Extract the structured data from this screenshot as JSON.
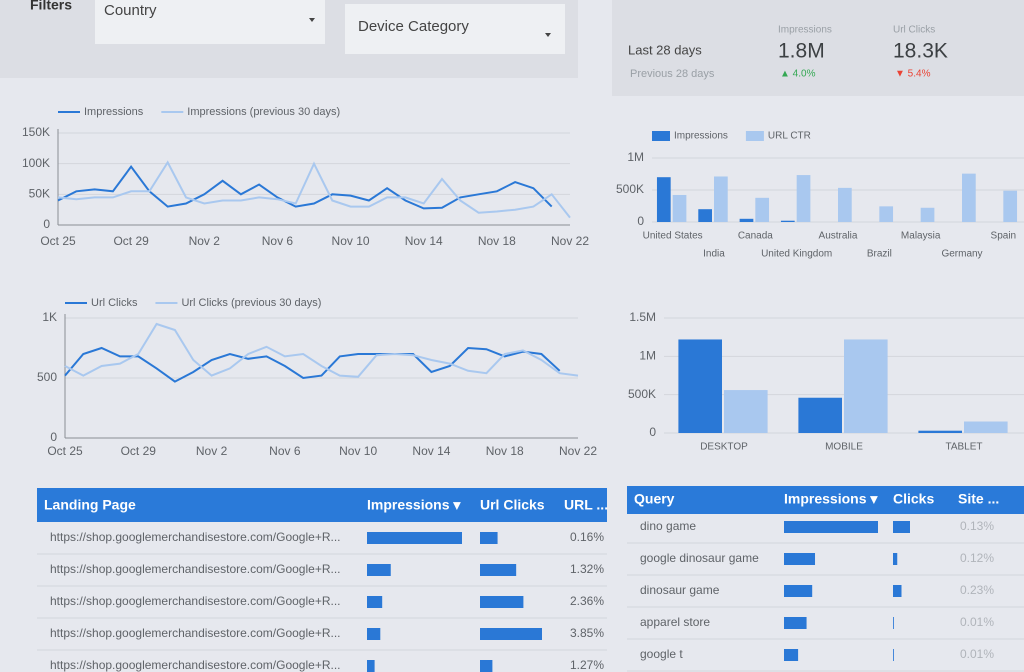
{
  "filters": {
    "label": "Filters",
    "dropdowns": [
      "Country",
      "Device Category"
    ]
  },
  "scorecard": {
    "period": "Last 28 days",
    "previous": "Previous 28 days",
    "metrics": [
      {
        "name": "Impressions",
        "value": "1.8M",
        "delta": "▲ 4.0%"
      },
      {
        "name": "Url Clicks",
        "value": "18.3K",
        "delta": "▼ 5.4%"
      }
    ]
  },
  "impressions_chart": {
    "type": "line",
    "categories": [
      "Oct 25",
      null,
      null,
      null,
      "Oct 29",
      null,
      null,
      null,
      "Nov 2",
      null,
      null,
      null,
      "Nov 6",
      null,
      null,
      null,
      "Nov 10",
      null,
      null,
      null,
      "Nov 14",
      null,
      null,
      null,
      "Nov 18",
      null,
      null,
      null,
      "Nov 22"
    ],
    "series": [
      {
        "name": "Impressions",
        "color": "#2a78d6",
        "values": [
          40000,
          55000,
          58000,
          55000,
          95000,
          55000,
          30000,
          35000,
          50000,
          72000,
          50000,
          66000,
          45000,
          30000,
          35000,
          50000,
          48000,
          40000,
          60000,
          40000,
          27000,
          28000,
          45000,
          50000,
          55000,
          70000,
          60000,
          30000,
          null
        ]
      },
      {
        "name": "Impressions (previous 30 days)",
        "color": "#a9c8ef",
        "values": [
          45000,
          42000,
          45000,
          45000,
          55000,
          55000,
          102000,
          45000,
          35000,
          40000,
          40000,
          45000,
          42000,
          35000,
          100000,
          40000,
          30000,
          30000,
          45000,
          45000,
          35000,
          75000,
          40000,
          20000,
          22000,
          25000,
          30000,
          50000,
          12000
        ]
      }
    ],
    "ylim": [
      0,
      150000
    ],
    "yticks": [
      0,
      {
        "value": 50000,
        "label": "50K"
      },
      {
        "value": 100000,
        "label": "100K"
      },
      {
        "value": 150000,
        "label": "150K"
      }
    ],
    "grid": true
  },
  "clicks_chart": {
    "type": "line",
    "categories": [
      "Oct 25",
      null,
      null,
      null,
      "Oct 29",
      null,
      null,
      null,
      "Nov 2",
      null,
      null,
      null,
      "Nov 6",
      null,
      null,
      null,
      "Nov 10",
      null,
      null,
      null,
      "Nov 14",
      null,
      null,
      null,
      "Nov 18",
      null,
      null,
      null,
      "Nov 22"
    ],
    "series": [
      {
        "name": "Url Clicks",
        "color": "#2a78d6",
        "values": [
          520,
          700,
          750,
          680,
          680,
          580,
          470,
          550,
          650,
          700,
          660,
          680,
          600,
          500,
          520,
          680,
          700,
          700,
          700,
          700,
          550,
          600,
          750,
          740,
          680,
          720,
          700,
          560,
          null
        ]
      },
      {
        "name": "Url Clicks (previous 30 days)",
        "color": "#a9c8ef",
        "values": [
          600,
          520,
          600,
          620,
          700,
          950,
          900,
          650,
          520,
          580,
          700,
          760,
          680,
          700,
          600,
          520,
          510,
          690,
          700,
          690,
          650,
          620,
          560,
          540,
          700,
          730,
          650,
          540,
          520
        ]
      }
    ],
    "ylim": [
      0,
      1000
    ],
    "yticks": [
      0,
      500,
      {
        "value": 1000,
        "label": "1K"
      }
    ],
    "grid": true
  },
  "country_chart": {
    "type": "bar",
    "categories": [
      "United States",
      "India",
      "Canada",
      "United Kingdom",
      "Australia",
      "Brazil",
      "Malaysia",
      "Germany",
      "Spain"
    ],
    "series": [
      {
        "name": "Impressions",
        "color": "#2a78d6",
        "values": [
          700000,
          200000,
          50000,
          20000,
          0,
          0,
          0,
          0,
          0
        ]
      },
      {
        "name": "URL CTR",
        "color": "#a9c8ef",
        "axis": "y2",
        "values": [
          1.9,
          3.2,
          1.7,
          3.3,
          2.4,
          1.1,
          1.0,
          3.4,
          2.2
        ]
      }
    ],
    "ylim": [
      0,
      1000000
    ],
    "yticks": [
      0,
      {
        "value": 500000,
        "label": "500K"
      },
      {
        "value": 1000000,
        "label": "1M"
      }
    ],
    "y2lim": [
      0,
      4.5
    ],
    "grid": true
  },
  "device_chart": {
    "type": "bar",
    "categories": [
      "DESKTOP",
      "MOBILE",
      "TABLET"
    ],
    "series": [
      {
        "color": "#2a78d6",
        "values": [
          1220000,
          460000,
          30000
        ]
      },
      {
        "color": "#a9c8ef",
        "values": [
          560000,
          1220000,
          150000
        ]
      }
    ],
    "ylim": [
      0,
      1500000
    ],
    "yticks": [
      0,
      {
        "value": 500000,
        "label": "500K"
      },
      {
        "value": 1000000,
        "label": "1M"
      },
      {
        "value": 1500000,
        "label": "1.5M"
      }
    ],
    "grid": true
  },
  "landing_table": {
    "headers": [
      "Landing Page",
      "Impressions ▾",
      "Url Clicks",
      "URL ..."
    ],
    "rows": [
      {
        "page": "https://shop.googlemerchandisestore.com/Google+R...",
        "impressions": 100,
        "clicks": 17,
        "ctr": "0.16%"
      },
      {
        "page": "https://shop.googlemerchandisestore.com/Google+R...",
        "impressions": 25,
        "clicks": 35,
        "ctr": "1.32%"
      },
      {
        "page": "https://shop.googlemerchandisestore.com/Google+R...",
        "impressions": 16,
        "clicks": 42,
        "ctr": "2.36%"
      },
      {
        "page": "https://shop.googlemerchandisestore.com/Google+R...",
        "impressions": 14,
        "clicks": 60,
        "ctr": "3.85%"
      },
      {
        "page": "https://shop.googlemerchandisestore.com/Google+R...",
        "impressions": 8,
        "clicks": 12,
        "ctr": "1.27%"
      }
    ]
  },
  "query_table": {
    "headers": [
      "Query",
      "Impressions ▾",
      "Clicks",
      "Site ..."
    ],
    "rows": [
      {
        "query": "dino game",
        "impressions": 100,
        "clicks": 60,
        "ctr": "0.13%"
      },
      {
        "query": "google dinosaur game",
        "impressions": 33,
        "clicks": 15,
        "ctr": "0.12%"
      },
      {
        "query": "dinosaur game",
        "impressions": 30,
        "clicks": 30,
        "ctr": "0.23%"
      },
      {
        "query": "apparel store",
        "impressions": 24,
        "clicks": 3,
        "ctr": "0.01%"
      },
      {
        "query": "google t",
        "impressions": 15,
        "clicks": 3,
        "ctr": "0.01%"
      }
    ]
  }
}
